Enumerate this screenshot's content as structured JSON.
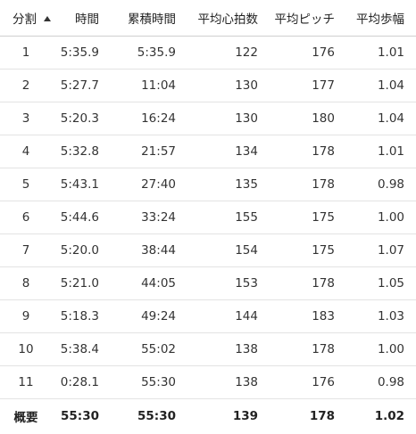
{
  "table": {
    "headers": {
      "split": "分割",
      "time": "時間",
      "cumulative_time": "累積時間",
      "avg_heart_rate": "平均心拍数",
      "avg_cadence": "平均ピッチ",
      "avg_stride": "平均歩幅"
    },
    "sort_icon": "sort-ascending-icon",
    "rows": [
      {
        "split": "1",
        "time": "5:35.9",
        "cumulative_time": "5:35.9",
        "avg_heart_rate": "122",
        "avg_cadence": "176",
        "avg_stride": "1.01"
      },
      {
        "split": "2",
        "time": "5:27.7",
        "cumulative_time": "11:04",
        "avg_heart_rate": "130",
        "avg_cadence": "177",
        "avg_stride": "1.04"
      },
      {
        "split": "3",
        "time": "5:20.3",
        "cumulative_time": "16:24",
        "avg_heart_rate": "130",
        "avg_cadence": "180",
        "avg_stride": "1.04"
      },
      {
        "split": "4",
        "time": "5:32.8",
        "cumulative_time": "21:57",
        "avg_heart_rate": "134",
        "avg_cadence": "178",
        "avg_stride": "1.01"
      },
      {
        "split": "5",
        "time": "5:43.1",
        "cumulative_time": "27:40",
        "avg_heart_rate": "135",
        "avg_cadence": "178",
        "avg_stride": "0.98"
      },
      {
        "split": "6",
        "time": "5:44.6",
        "cumulative_time": "33:24",
        "avg_heart_rate": "155",
        "avg_cadence": "175",
        "avg_stride": "1.00"
      },
      {
        "split": "7",
        "time": "5:20.0",
        "cumulative_time": "38:44",
        "avg_heart_rate": "154",
        "avg_cadence": "175",
        "avg_stride": "1.07"
      },
      {
        "split": "8",
        "time": "5:21.0",
        "cumulative_time": "44:05",
        "avg_heart_rate": "153",
        "avg_cadence": "178",
        "avg_stride": "1.05"
      },
      {
        "split": "9",
        "time": "5:18.3",
        "cumulative_time": "49:24",
        "avg_heart_rate": "144",
        "avg_cadence": "183",
        "avg_stride": "1.03"
      },
      {
        "split": "10",
        "time": "5:38.4",
        "cumulative_time": "55:02",
        "avg_heart_rate": "138",
        "avg_cadence": "178",
        "avg_stride": "1.00"
      },
      {
        "split": "11",
        "time": "0:28.1",
        "cumulative_time": "55:30",
        "avg_heart_rate": "138",
        "avg_cadence": "176",
        "avg_stride": "0.98"
      }
    ],
    "summary": {
      "split": "概要",
      "time": "55:30",
      "cumulative_time": "55:30",
      "avg_heart_rate": "139",
      "avg_cadence": "178",
      "avg_stride": "1.02"
    }
  }
}
